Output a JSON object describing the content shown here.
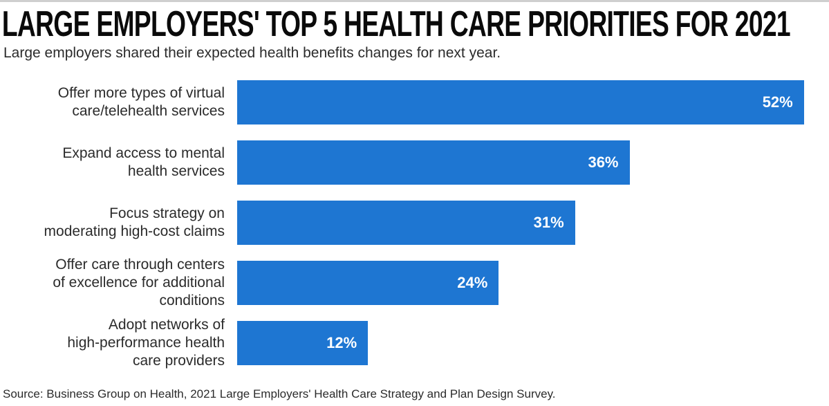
{
  "colors": {
    "bar_fill": "#1e76d2",
    "value_text": "#ffffff",
    "title_text": "#0a0a0a",
    "body_text": "#2b2b2b",
    "top_rule": "#cfcfcf"
  },
  "chart_data": {
    "type": "bar",
    "orientation": "horizontal",
    "title": "LARGE EMPLOYERS' TOP 5 HEALTH CARE PRIORITIES FOR 2021",
    "subtitle": "Large employers shared their expected health benefits changes for next year.",
    "categories": [
      "Offer more types of virtual care/telehealth services",
      "Expand access to mental health services",
      "Focus strategy on moderating high-cost claims",
      "Offer care through centers of excellence for additional conditions",
      "Adopt networks of high-performance health care providers"
    ],
    "category_lines": [
      [
        "Offer more types of virtual",
        "care/telehealth services"
      ],
      [
        "Expand access to mental",
        "health services"
      ],
      [
        "Focus strategy on",
        "moderating high-cost claims"
      ],
      [
        "Offer care through centers",
        "of excellence for additional",
        "conditions"
      ],
      [
        "Adopt networks of",
        "high-performance health",
        "care providers"
      ]
    ],
    "values": [
      52,
      36,
      31,
      24,
      12
    ],
    "value_labels": [
      "52%",
      "36%",
      "31%",
      "24%",
      "12%"
    ],
    "xlim": [
      0,
      54.3
    ],
    "xlabel": "",
    "ylabel": "",
    "grid": false,
    "legend": false,
    "value_label_position": "inside-end",
    "source": "Source: Business Group on Health, 2021 Large Employers' Health Care Strategy and Plan Design Survey."
  }
}
